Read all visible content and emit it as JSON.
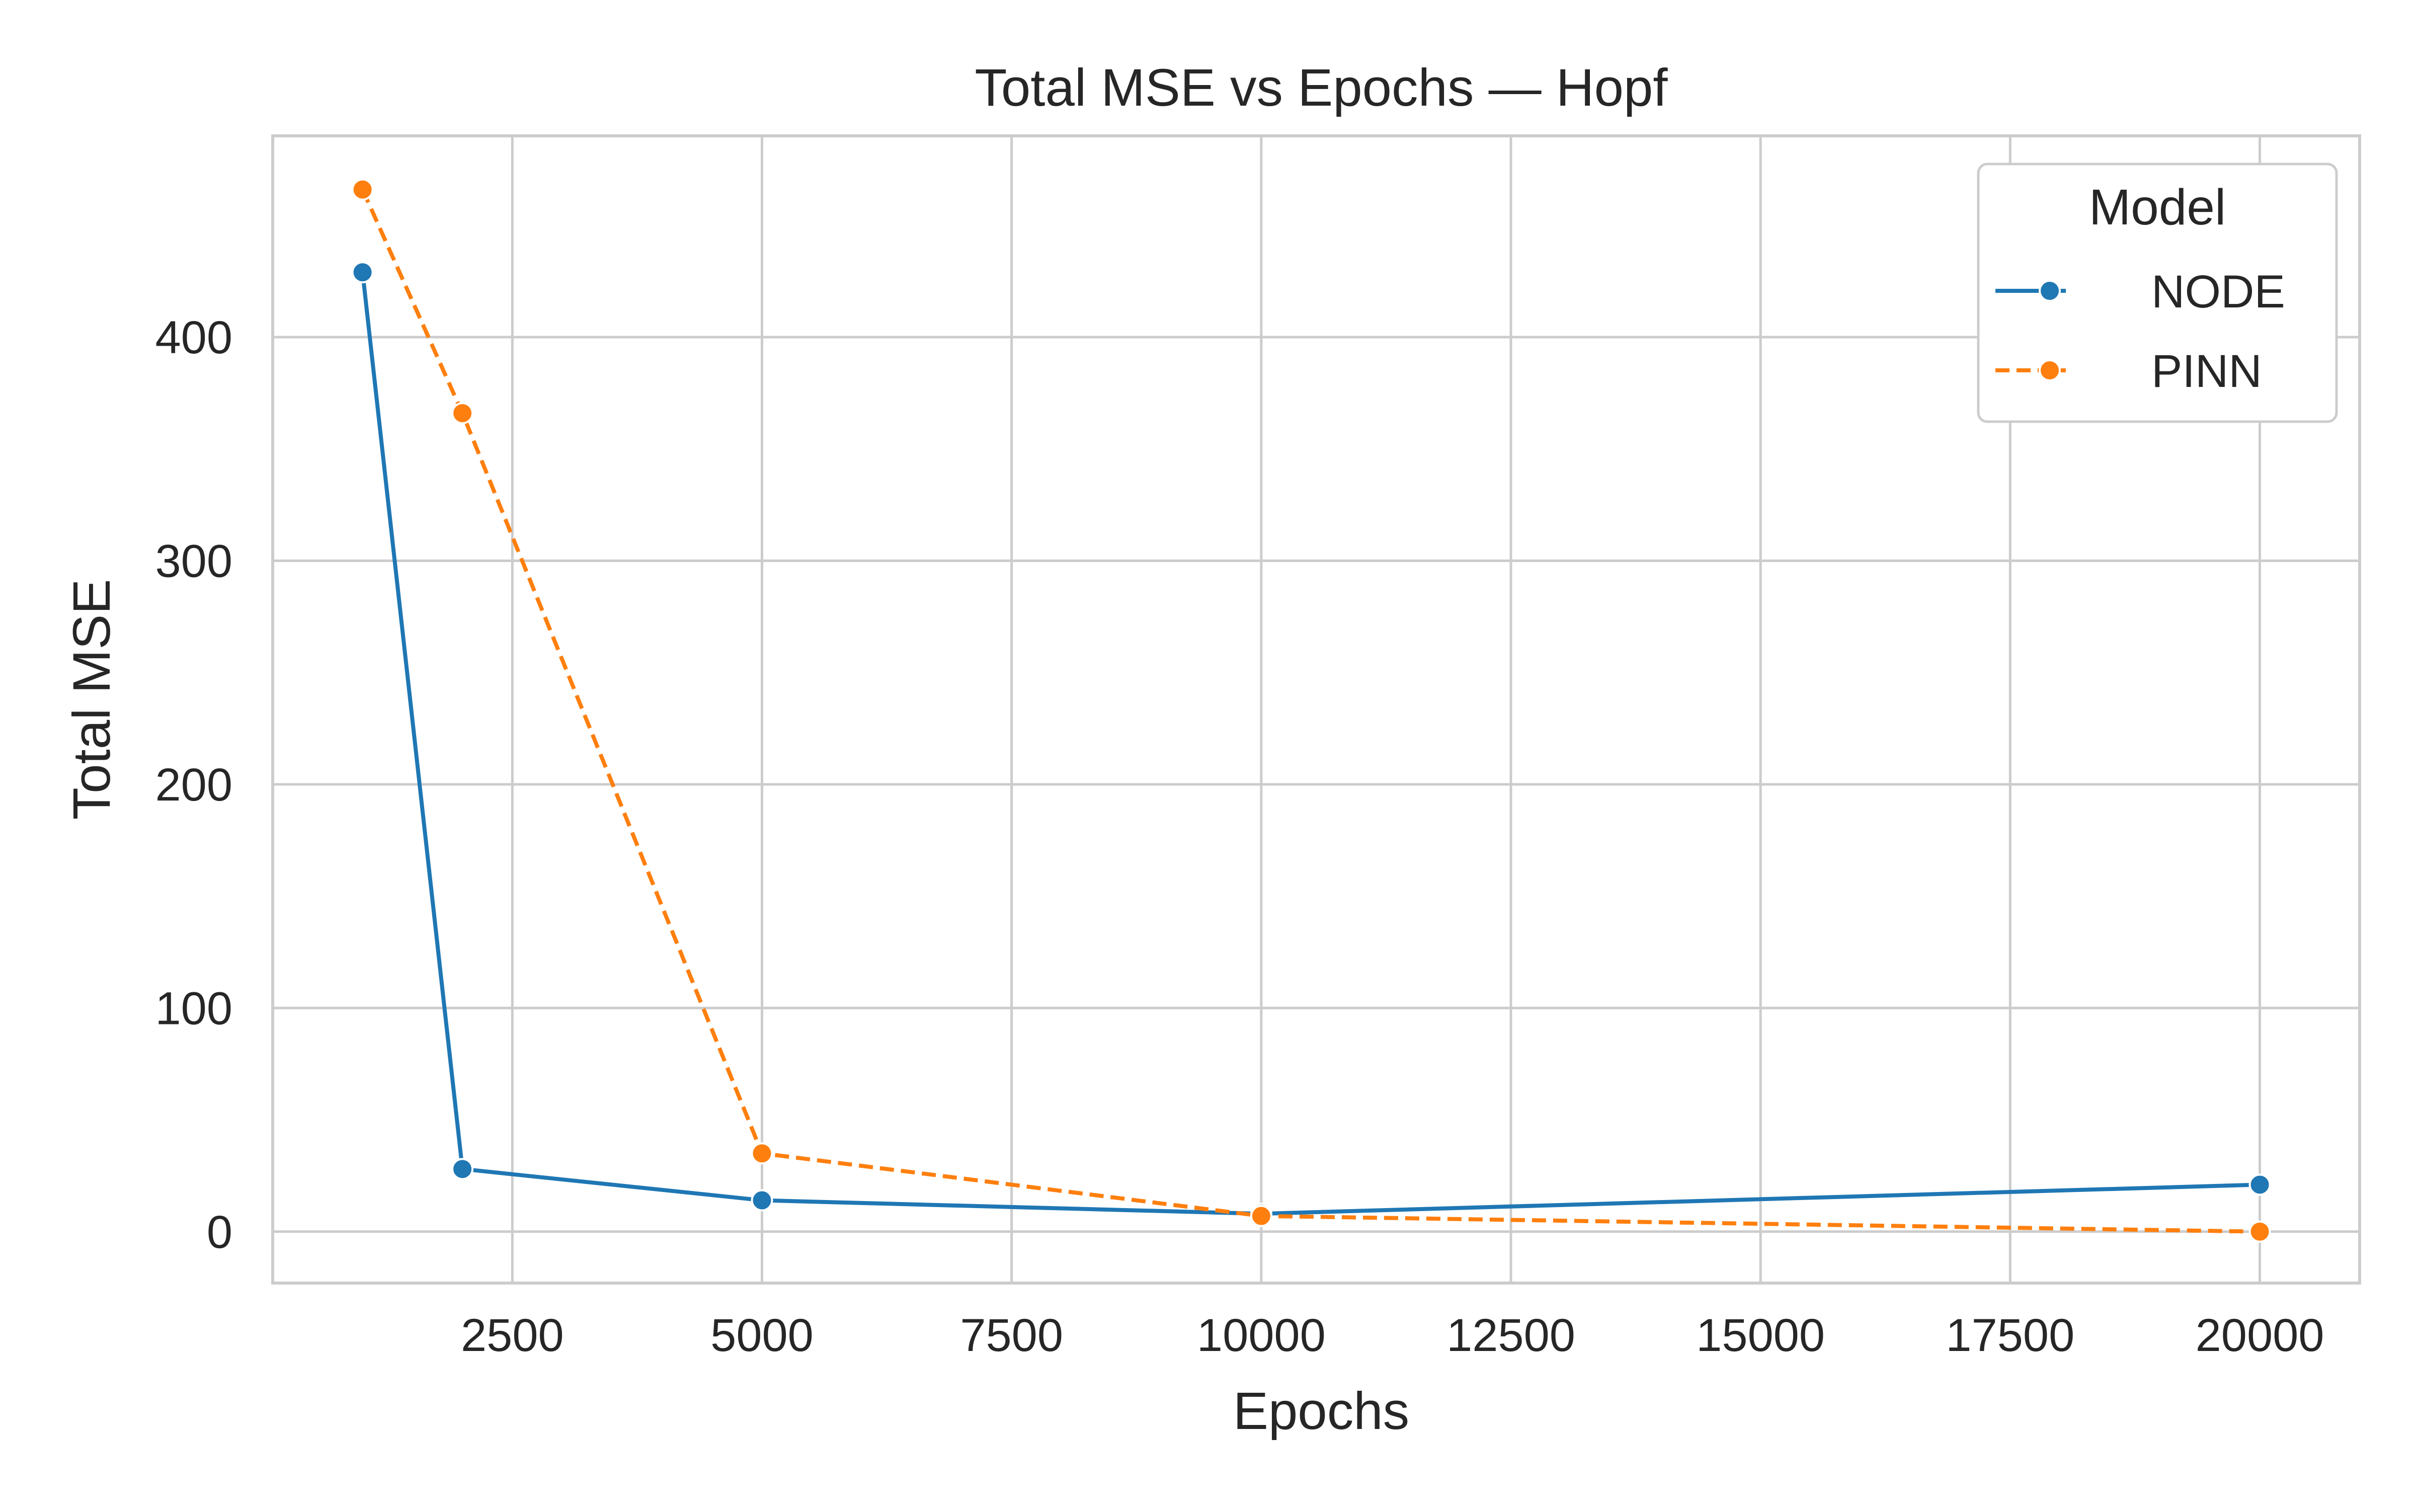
{
  "chart_data": {
    "type": "line",
    "title": "Total MSE vs Epochs — Hopf",
    "xlabel": "Epochs",
    "ylabel": "Total MSE",
    "xlim": [
      100,
      21000
    ],
    "ylim": [
      -23,
      490
    ],
    "x_ticks": [
      2500,
      5000,
      7500,
      10000,
      12500,
      15000,
      17500,
      20000
    ],
    "y_ticks": [
      0,
      100,
      200,
      300,
      400
    ],
    "grid": true,
    "legend_title": "Model",
    "legend_position": "top-right",
    "series": [
      {
        "name": "NODE",
        "color": "#1f77b4",
        "style": "solid",
        "x": [
          1000,
          2000,
          5000,
          10000,
          20000
        ],
        "y": [
          429,
          28,
          14,
          8,
          21
        ]
      },
      {
        "name": "PINN",
        "color": "#ff7f0e",
        "style": "dashed",
        "x": [
          1000,
          2000,
          5000,
          10000,
          20000
        ],
        "y": [
          466,
          366,
          35,
          7,
          0
        ]
      }
    ]
  }
}
